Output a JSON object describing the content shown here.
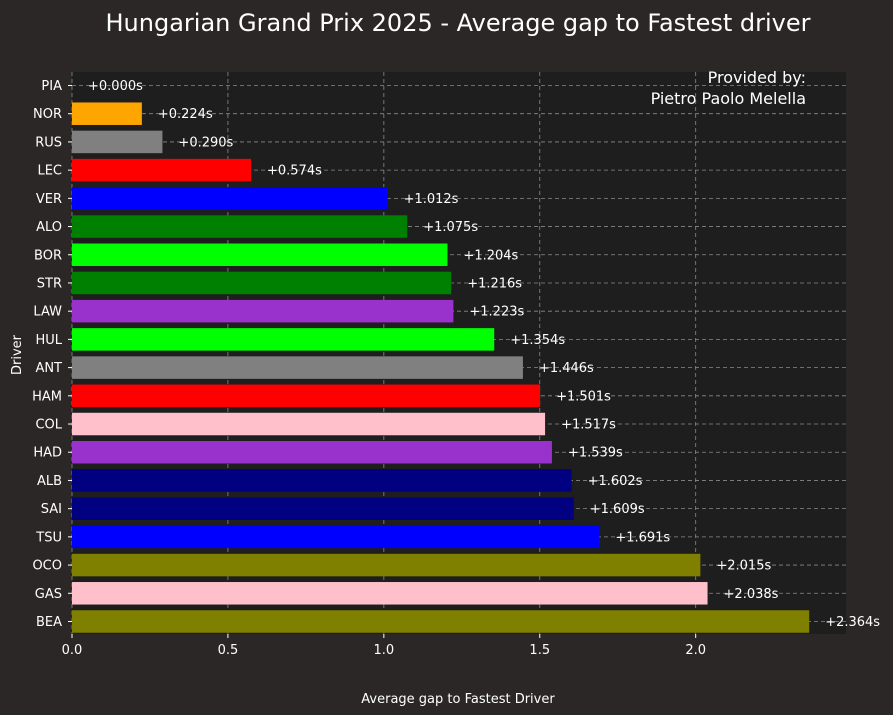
{
  "chart_data": {
    "type": "bar",
    "orientation": "horizontal",
    "title": "Hungarian Grand Prix 2025 - Average gap to Fastest driver",
    "xlabel": "Average gap to Fastest Driver",
    "ylabel": "Driver",
    "xlim": [
      0,
      2.482
    ],
    "xticks": [
      "0.0",
      "0.5",
      "1.0",
      "1.5",
      "2.0"
    ],
    "grid": true,
    "annotation": {
      "line1": "Provided by:",
      "line2": "Pietro Paolo Melella",
      "placement": "top-right"
    },
    "categories": [
      "PIA",
      "NOR",
      "RUS",
      "LEC",
      "VER",
      "ALO",
      "BOR",
      "STR",
      "LAW",
      "HUL",
      "ANT",
      "HAM",
      "COL",
      "HAD",
      "ALB",
      "SAI",
      "TSU",
      "OCO",
      "GAS",
      "BEA"
    ],
    "values": [
      0.0,
      0.224,
      0.29,
      0.574,
      1.012,
      1.075,
      1.204,
      1.216,
      1.223,
      1.354,
      1.446,
      1.501,
      1.517,
      1.539,
      1.602,
      1.609,
      1.691,
      2.015,
      2.038,
      2.364
    ],
    "data_labels": [
      "+0.000s",
      "+0.224s",
      "+0.290s",
      "+0.574s",
      "+1.012s",
      "+1.075s",
      "+1.204s",
      "+1.216s",
      "+1.223s",
      "+1.354s",
      "+1.446s",
      "+1.501s",
      "+1.517s",
      "+1.539s",
      "+1.602s",
      "+1.609s",
      "+1.691s",
      "+2.015s",
      "+2.038s",
      "+2.364s"
    ],
    "colors": [
      "#ffa500",
      "#ffa500",
      "#808080",
      "#ff0000",
      "#0000ff",
      "#008000",
      "#00ff00",
      "#008000",
      "#9932cc",
      "#00ff00",
      "#808080",
      "#ff0000",
      "#ffc0cb",
      "#9932cc",
      "#000080",
      "#000080",
      "#0000ff",
      "#808000",
      "#ffc0cb",
      "#808000"
    ],
    "background": "#1f1e1e",
    "figure_background": "#2a2726",
    "grid_color": "#8a8a8a"
  }
}
